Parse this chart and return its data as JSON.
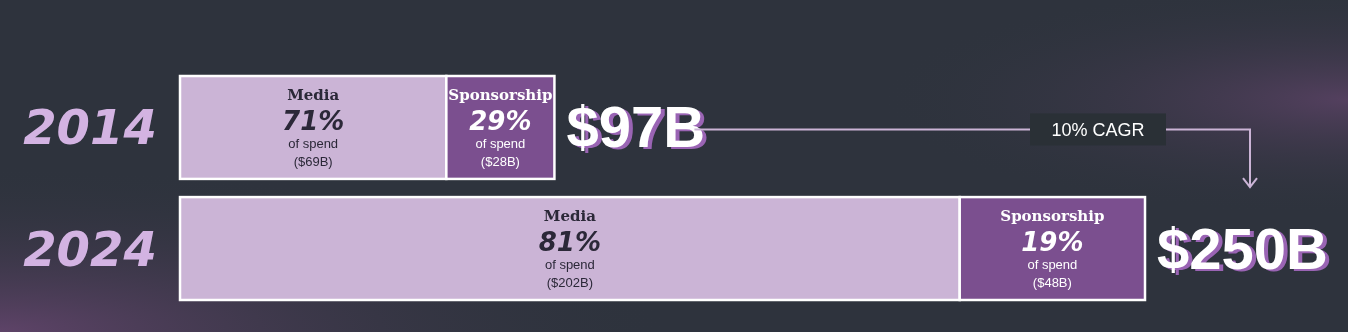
{
  "chart_data": {
    "type": "bar",
    "orientation": "horizontal",
    "stacked": true,
    "categories": [
      "2014",
      "2024"
    ],
    "series": [
      {
        "name": "Media",
        "color": "#cbb4d6",
        "values": [
          69,
          202
        ],
        "value_labels": [
          "($69B)",
          "($202B)"
        ]
      },
      {
        "name": "Sponsorship",
        "color": "#7b4f8f",
        "values": [
          28,
          48
        ],
        "value_labels": [
          "($28B)",
          "($48B)"
        ]
      }
    ],
    "totals": [
      "$97B",
      "$250B"
    ],
    "annotations": [
      "10% CAGR",
      {
        "text": "71%\nof spend",
        "x": 34.5,
        "y": "2014"
      },
      {
        "text": "29%\nof spend",
        "x": 83,
        "y": "2014"
      },
      {
        "text": "81%\nof spend",
        "x": 101,
        "y": "2024"
      },
      {
        "text": "19%\nof spend",
        "x": 226,
        "y": "2024"
      }
    ],
    "tick_labels": "y"
  }
}
